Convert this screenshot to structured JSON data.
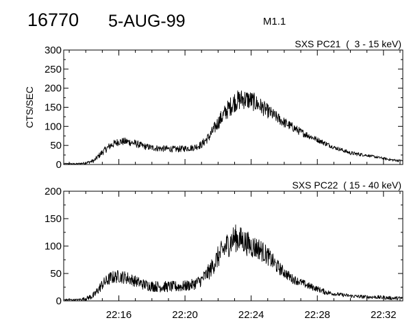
{
  "header": {
    "event_id": "16770",
    "date": "5-AUG-99",
    "flare_class": "M1.1"
  },
  "chart_data": [
    {
      "type": "line",
      "title": "SXS PC21  (  3 - 15 keV)",
      "ylabel": "CTS/SEC",
      "xlabel": "",
      "ylim": [
        0,
        300
      ],
      "yticks": [
        0,
        50,
        100,
        150,
        200,
        250,
        300
      ],
      "xlim": [
        "22:12:40",
        "22:33:10"
      ],
      "xticks": [
        "22:16",
        "22:20",
        "22:24",
        "22:28",
        "22:32"
      ],
      "xtick_labels_shown": false,
      "series": [
        {
          "x": [
            "22:12:40",
            "22:13:00",
            "22:13:30",
            "22:14:00",
            "22:14:30",
            "22:15:00",
            "22:15:30",
            "22:16:00",
            "22:16:30",
            "22:17:00",
            "22:17:30",
            "22:18:00",
            "22:18:30",
            "22:19:00",
            "22:19:30",
            "22:20:00",
            "22:20:30",
            "22:21:00",
            "22:21:30",
            "22:22:00",
            "22:22:30",
            "22:23:00",
            "22:23:30",
            "22:24:00",
            "22:24:30",
            "22:25:00",
            "22:25:30",
            "22:26:00",
            "22:26:30",
            "22:27:00",
            "22:27:30",
            "22:28:00",
            "22:28:30",
            "22:29:00",
            "22:29:30",
            "22:30:00",
            "22:30:30",
            "22:31:00",
            "22:31:30",
            "22:32:00",
            "22:32:30",
            "22:33:00"
          ],
          "values": [
            2,
            2,
            2,
            4,
            10,
            32,
            50,
            60,
            60,
            55,
            48,
            44,
            42,
            41,
            40,
            42,
            44,
            52,
            75,
            110,
            140,
            165,
            172,
            168,
            155,
            140,
            125,
            110,
            98,
            85,
            75,
            65,
            55,
            45,
            38,
            30,
            27,
            24,
            20,
            16,
            12,
            10
          ],
          "noise": [
            1,
            1,
            1,
            2,
            3,
            5,
            6,
            6,
            6,
            6,
            5,
            5,
            5,
            5,
            5,
            5,
            5,
            6,
            8,
            11,
            14,
            16,
            16,
            15,
            13,
            11,
            9,
            8,
            7,
            6,
            5,
            4,
            4,
            3,
            3,
            3,
            3,
            2,
            2,
            2,
            2,
            2
          ]
        }
      ]
    },
    {
      "type": "line",
      "title": "SXS PC22  ( 15 - 40 keV)",
      "ylabel": "",
      "xlabel": "",
      "ylim": [
        0,
        200
      ],
      "yticks": [
        0,
        50,
        100,
        150,
        200
      ],
      "xlim": [
        "22:12:40",
        "22:33:10"
      ],
      "xticks": [
        "22:16",
        "22:20",
        "22:24",
        "22:28",
        "22:32"
      ],
      "xtick_labels_shown": true,
      "series": [
        {
          "x": [
            "22:12:40",
            "22:13:00",
            "22:13:30",
            "22:14:00",
            "22:14:30",
            "22:15:00",
            "22:15:30",
            "22:16:00",
            "22:16:30",
            "22:17:00",
            "22:17:30",
            "22:18:00",
            "22:18:30",
            "22:19:00",
            "22:19:30",
            "22:20:00",
            "22:20:30",
            "22:21:00",
            "22:21:30",
            "22:22:00",
            "22:22:30",
            "22:23:00",
            "22:23:30",
            "22:24:00",
            "22:24:30",
            "22:25:00",
            "22:25:30",
            "22:26:00",
            "22:26:30",
            "22:27:00",
            "22:27:30",
            "22:28:00",
            "22:28:30",
            "22:29:00",
            "22:29:30",
            "22:30:00",
            "22:30:30",
            "22:31:00",
            "22:31:30",
            "22:32:00",
            "22:32:30",
            "22:33:00"
          ],
          "values": [
            2,
            2,
            2,
            4,
            10,
            30,
            42,
            45,
            42,
            36,
            30,
            27,
            26,
            26,
            26,
            27,
            30,
            38,
            55,
            80,
            100,
            115,
            110,
            100,
            95,
            82,
            65,
            52,
            40,
            34,
            27,
            22,
            16,
            13,
            11,
            9,
            8,
            7,
            7,
            6,
            5,
            5
          ],
          "noise": [
            1,
            1,
            1,
            2,
            4,
            6,
            7,
            7,
            7,
            6,
            6,
            6,
            6,
            6,
            6,
            6,
            6,
            7,
            9,
            12,
            14,
            15,
            14,
            13,
            12,
            10,
            8,
            6,
            5,
            4,
            4,
            3,
            3,
            2,
            2,
            2,
            2,
            2,
            2,
            2,
            2,
            2
          ]
        }
      ]
    }
  ]
}
